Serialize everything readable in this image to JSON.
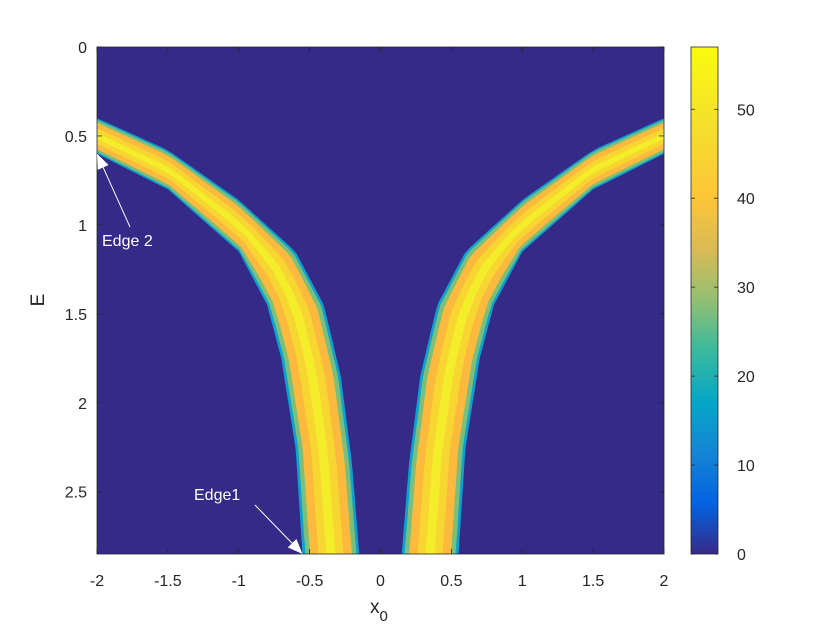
{
  "chart_data": {
    "type": "heatmap",
    "title": "",
    "xlabel": "x",
    "xlabel_subscript": "0",
    "ylabel": "E",
    "xlim": [
      -2,
      2
    ],
    "ylim": [
      0,
      2.85
    ],
    "y_reversed": true,
    "x_ticks": [
      -2,
      -1.5,
      -1,
      -0.5,
      0,
      0.5,
      1,
      1.5,
      2
    ],
    "x_tick_labels": [
      "-2",
      "-1.5",
      "-1",
      "-0.5",
      "0",
      "0.5",
      "1",
      "1.5",
      "2"
    ],
    "y_ticks": [
      0,
      0.5,
      1,
      1.5,
      2,
      2.5
    ],
    "y_tick_labels": [
      "0",
      "0.5",
      "1",
      "1.5",
      "2",
      "2.5"
    ],
    "colorbar": {
      "colormap": "parula",
      "range": [
        0,
        57
      ],
      "ticks": [
        0,
        10,
        20,
        30,
        40,
        50
      ],
      "tick_labels": [
        "0",
        "10",
        "20",
        "30",
        "40",
        "50"
      ]
    },
    "background_value": 0,
    "band_peak_value": 57,
    "bands": [
      {
        "side": "left",
        "outer_edge": [
          [
            -2,
            0.6
          ],
          [
            -1.5,
            0.8
          ],
          [
            -1,
            1.15
          ],
          [
            -0.8,
            1.45
          ],
          [
            -0.7,
            1.75
          ],
          [
            -0.6,
            2.25
          ],
          [
            -0.55,
            2.85
          ]
        ],
        "inner_edge": [
          [
            -2,
            0.4
          ],
          [
            -1.5,
            0.58
          ],
          [
            -1,
            0.86
          ],
          [
            -0.6,
            1.15
          ],
          [
            -0.4,
            1.45
          ],
          [
            -0.28,
            1.85
          ],
          [
            -0.2,
            2.35
          ],
          [
            -0.15,
            2.85
          ]
        ]
      },
      {
        "side": "right",
        "outer_edge": [
          [
            2,
            0.6
          ],
          [
            1.5,
            0.8
          ],
          [
            1,
            1.15
          ],
          [
            0.8,
            1.45
          ],
          [
            0.7,
            1.75
          ],
          [
            0.6,
            2.25
          ],
          [
            0.55,
            2.85
          ]
        ],
        "inner_edge": [
          [
            2,
            0.4
          ],
          [
            1.5,
            0.58
          ],
          [
            1,
            0.86
          ],
          [
            0.6,
            1.15
          ],
          [
            0.4,
            1.45
          ],
          [
            0.28,
            1.85
          ],
          [
            0.2,
            2.35
          ],
          [
            0.15,
            2.85
          ]
        ]
      }
    ],
    "annotations": [
      {
        "text": "Edge 2",
        "target": [
          -2,
          0.6
        ]
      },
      {
        "text": "Edge1",
        "target": [
          -0.55,
          2.85
        ]
      }
    ]
  }
}
